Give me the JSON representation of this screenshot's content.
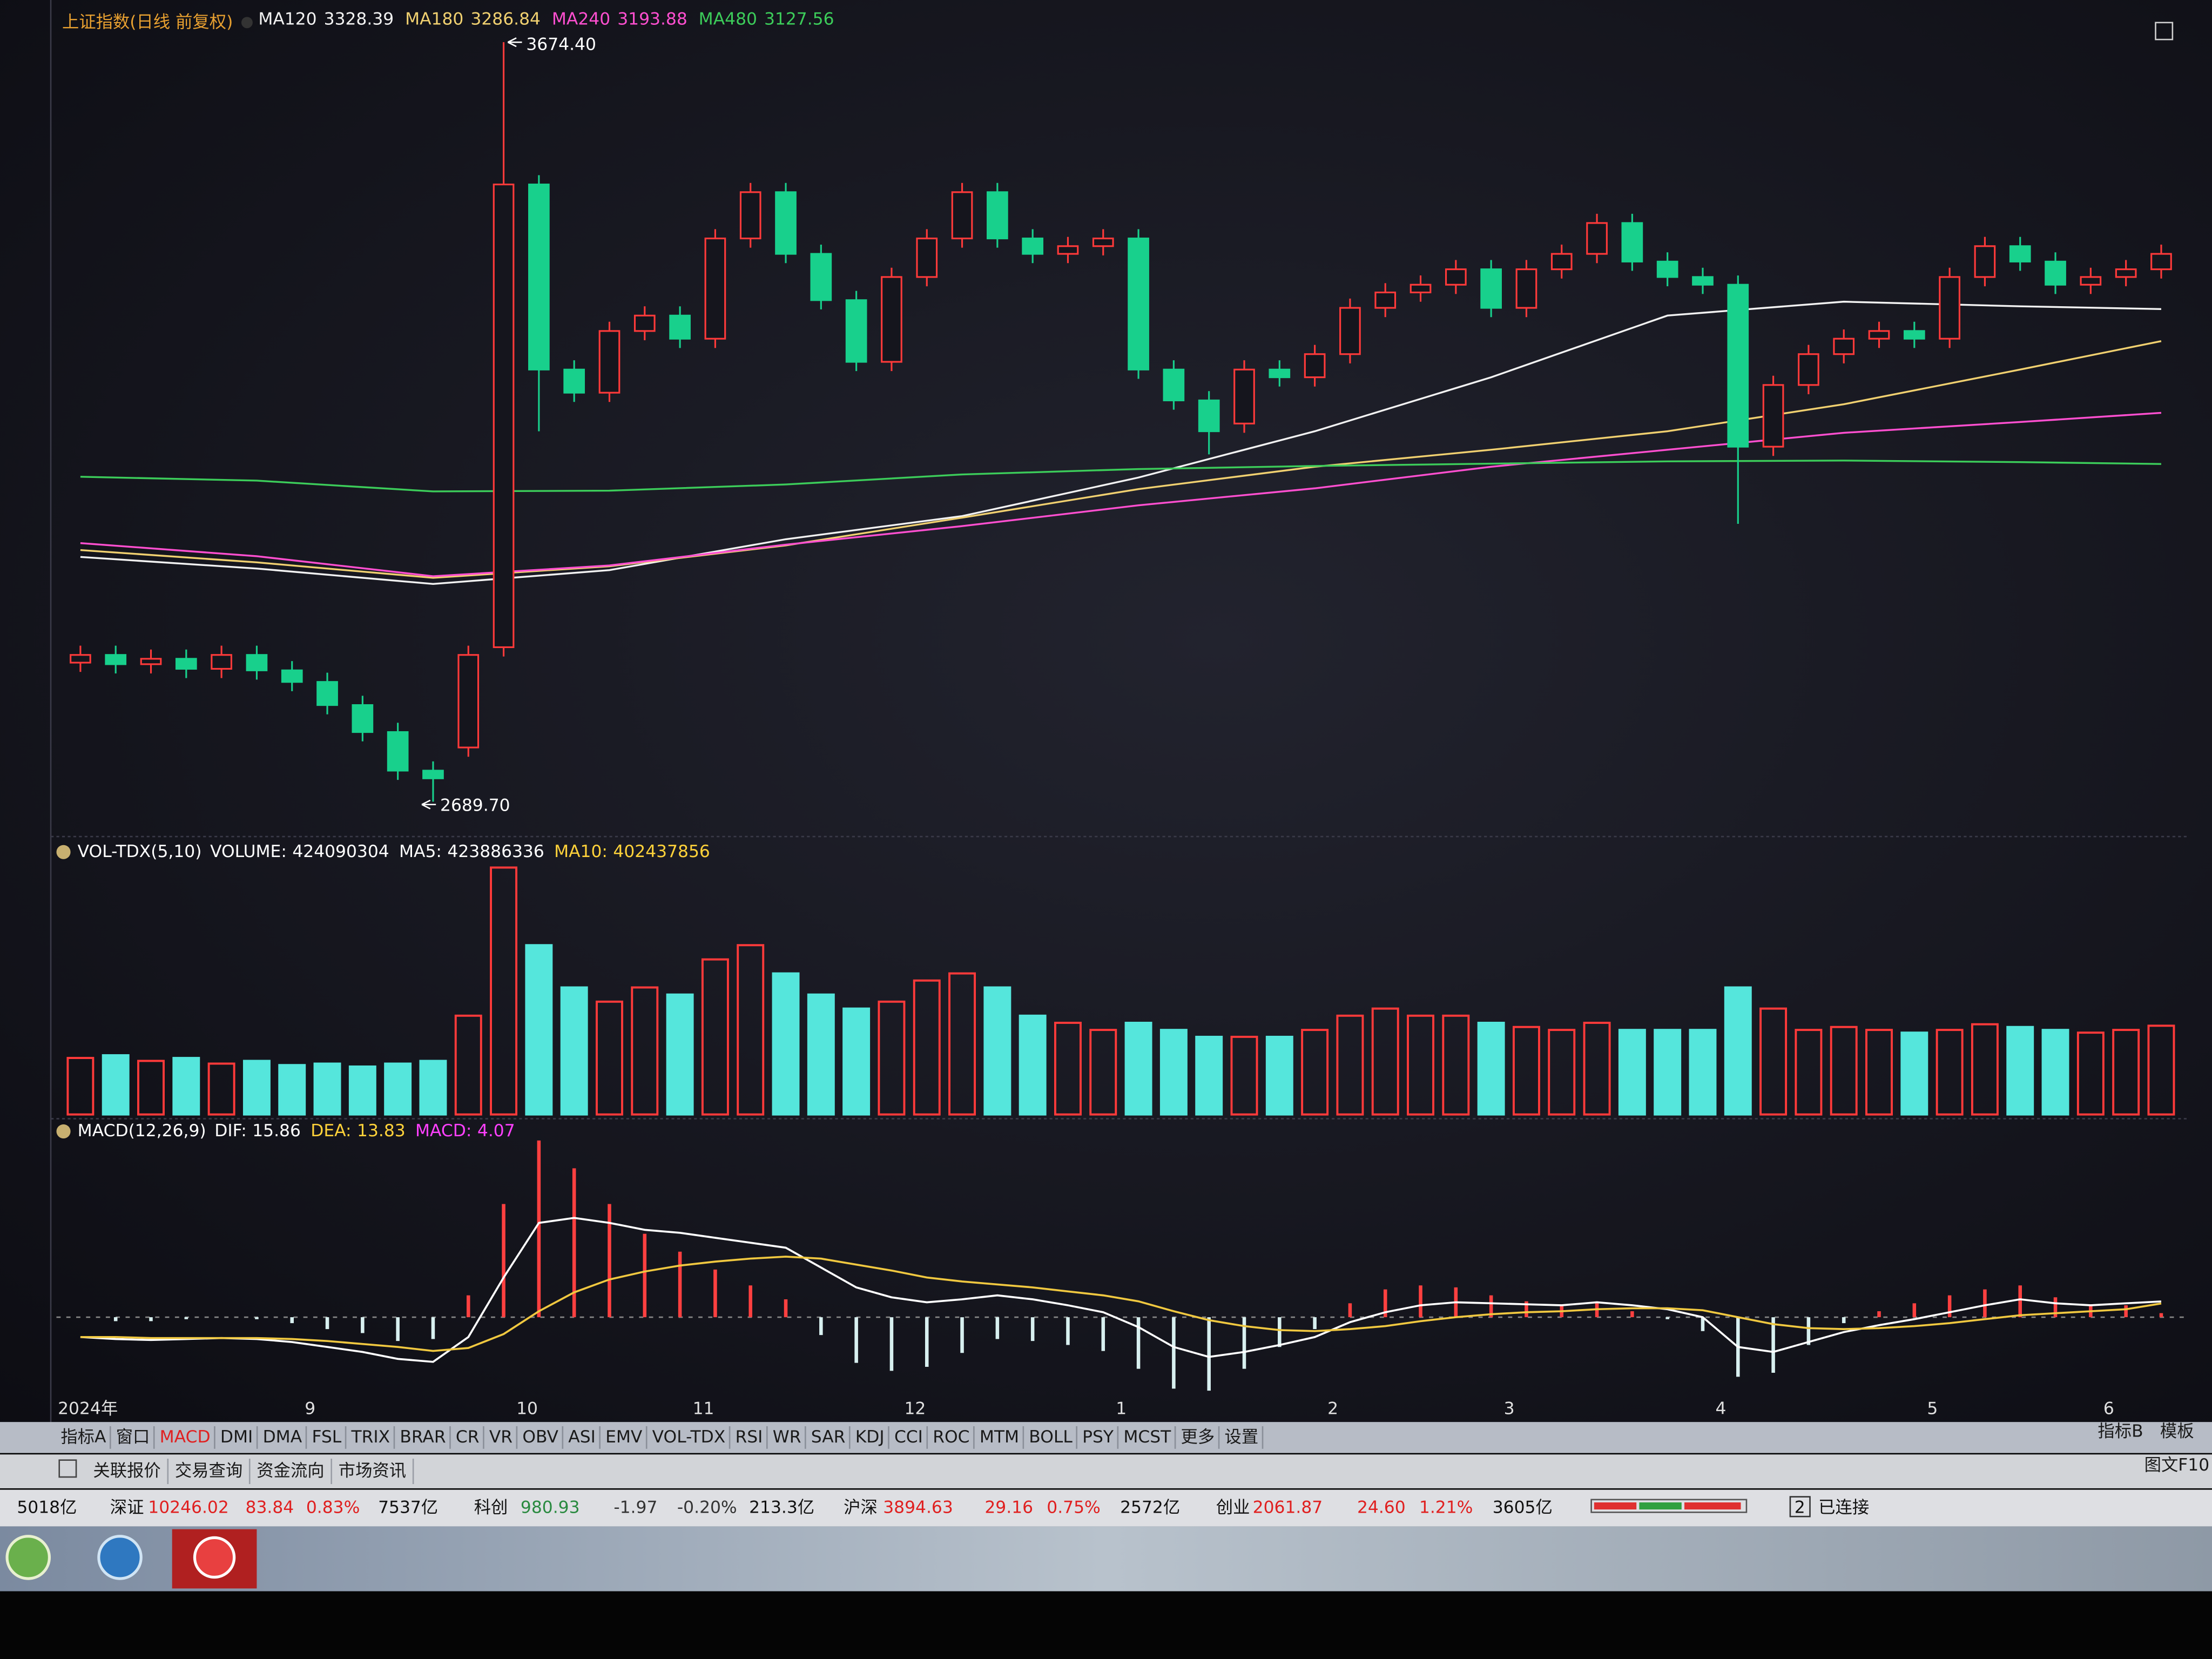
{
  "chart_data": {
    "type": "candlestick",
    "title": "上证指数(日线 前复权)",
    "categories": [
      "2024年",
      null,
      null,
      null,
      null,
      null,
      null,
      "9",
      null,
      null,
      null,
      null,
      null,
      "10",
      null,
      null,
      null,
      null,
      "11",
      null,
      null,
      null,
      null,
      null,
      "12",
      null,
      null,
      null,
      null,
      null,
      "1",
      null,
      null,
      null,
      null,
      null,
      "2",
      null,
      null,
      null,
      null,
      "3",
      null,
      null,
      null,
      null,
      null,
      "4",
      null,
      null,
      null,
      null,
      null,
      "5",
      null,
      null,
      null,
      null,
      "6",
      null
    ],
    "open": [
      2870,
      2880,
      2868,
      2875,
      2862,
      2880,
      2860,
      2845,
      2815,
      2780,
      2730,
      2760,
      2890,
      3490,
      3250,
      3220,
      3300,
      3320,
      3290,
      3420,
      3480,
      3400,
      3340,
      3260,
      3370,
      3420,
      3480,
      3420,
      3400,
      3410,
      3420,
      3250,
      3210,
      3180,
      3250,
      3240,
      3270,
      3330,
      3350,
      3360,
      3380,
      3330,
      3380,
      3400,
      3440,
      3390,
      3370,
      3360,
      3150,
      3230,
      3270,
      3290,
      3300,
      3290,
      3370,
      3410,
      3390,
      3360,
      3370,
      3380
    ],
    "high": [
      2892,
      2892,
      2887,
      2887,
      2892,
      2892,
      2872,
      2857,
      2827,
      2792,
      2742,
      2892,
      3674.4,
      3502,
      3262,
      3312,
      3332,
      3332,
      3432,
      3492,
      3492,
      3412,
      3352,
      3382,
      3432,
      3492,
      3492,
      3432,
      3422,
      3432,
      3432,
      3262,
      3222,
      3262,
      3262,
      3282,
      3342,
      3362,
      3372,
      3392,
      3392,
      3392,
      3412,
      3452,
      3452,
      3402,
      3382,
      3372,
      3242,
      3282,
      3302,
      3312,
      3312,
      3382,
      3422,
      3422,
      3402,
      3382,
      3392,
      3412
    ],
    "low": [
      2858,
      2856,
      2856,
      2850,
      2850,
      2848,
      2833,
      2803,
      2768,
      2718,
      2689.7,
      2748,
      2878,
      3170,
      3208,
      3208,
      3288,
      3278,
      3278,
      3408,
      3388,
      3328,
      3248,
      3248,
      3358,
      3408,
      3408,
      3388,
      3388,
      3398,
      3238,
      3198,
      3140,
      3168,
      3228,
      3228,
      3258,
      3318,
      3338,
      3348,
      3318,
      3318,
      3368,
      3388,
      3378,
      3358,
      3348,
      3050,
      3138,
      3218,
      3258,
      3278,
      3278,
      3278,
      3358,
      3378,
      3348,
      3348,
      3358,
      3368
    ],
    "close": [
      2880,
      2868,
      2875,
      2862,
      2880,
      2860,
      2845,
      2815,
      2780,
      2730,
      2720,
      2880,
      3490,
      3250,
      3220,
      3300,
      3320,
      3290,
      3420,
      3480,
      3400,
      3340,
      3260,
      3370,
      3420,
      3480,
      3420,
      3400,
      3410,
      3420,
      3250,
      3210,
      3170,
      3250,
      3240,
      3270,
      3330,
      3350,
      3360,
      3380,
      3330,
      3380,
      3400,
      3440,
      3390,
      3370,
      3360,
      3150,
      3230,
      3270,
      3290,
      3300,
      3290,
      3370,
      3410,
      3390,
      3360,
      3370,
      3380,
      3400
    ],
    "up_color": "#ff3a3a",
    "down_color": "#18d08c",
    "ylim": [
      2650,
      3720
    ],
    "high_label": {
      "value": 3674.4,
      "label": "3674.40"
    },
    "low_label": {
      "value": 2689.7,
      "label": "2689.70"
    },
    "ma": {
      "x": [
        0,
        5,
        10,
        15,
        20,
        25,
        30,
        35,
        40,
        45,
        50,
        55,
        59
      ],
      "series": [
        {
          "name": "MA120",
          "color": "#f2f2f2",
          "legend_value": 3328.39,
          "values": [
            3007,
            2992,
            2972,
            2990,
            3030,
            3060,
            3110,
            3170,
            3240,
            3320,
            3338,
            3332,
            3328.39
          ]
        },
        {
          "name": "MA180",
          "color": "#f0d070",
          "legend_value": 3286.84,
          "values": [
            3016,
            3000,
            2980,
            2995,
            3022,
            3058,
            3095,
            3124,
            3146,
            3170,
            3205,
            3250,
            3286.84
          ]
        },
        {
          "name": "MA240",
          "color": "#ff4fd0",
          "legend_value": 3193.88,
          "values": [
            3025,
            3008,
            2982,
            2996,
            3023,
            3047,
            3074,
            3096,
            3124,
            3146,
            3168,
            3182,
            3193.88
          ]
        },
        {
          "name": "MA480",
          "color": "#3ccc5a",
          "legend_value": 3127.56,
          "values": [
            3111,
            3106,
            3092,
            3093,
            3101,
            3114,
            3121,
            3125,
            3128,
            3131,
            3132,
            3130,
            3127.56
          ]
        }
      ]
    },
    "volume": {
      "title": "VOL-TDX(5,10)",
      "stats": [
        {
          "name": "VOLUME:",
          "value": 424090304,
          "color": "#ffffff"
        },
        {
          "name": "MA5:",
          "value": 423886336,
          "color": "#ffffff"
        },
        {
          "name": "MA10:",
          "value": 402437856,
          "color": "#ffd23a"
        }
      ],
      "values": [
        270000000,
        283000000,
        256000000,
        270000000,
        243000000,
        256000000,
        236000000,
        243000000,
        229000000,
        243000000,
        256000000,
        472000000,
        1180000000,
        809000000,
        607000000,
        539000000,
        607000000,
        573000000,
        741000000,
        809000000,
        674000000,
        573000000,
        506000000,
        539000000,
        640000000,
        674000000,
        607000000,
        472000000,
        438000000,
        404000000,
        438000000,
        404000000,
        371000000,
        371000000,
        371000000,
        404000000,
        472000000,
        506000000,
        472000000,
        472000000,
        438000000,
        418000000,
        404000000,
        438000000,
        404000000,
        404000000,
        404000000,
        607000000,
        506000000,
        404000000,
        418000000,
        404000000,
        391000000,
        404000000,
        431000000,
        418000000,
        404000000,
        391000000,
        404000000,
        424090304
      ],
      "ylim": [
        0,
        1200000000
      ],
      "up_color": "#ff3a3a",
      "down_color": "#55e6dc"
    },
    "macd": {
      "title": "MACD(12,26,9)",
      "stats": [
        {
          "name": "DIF:",
          "value": 15.86,
          "color": "#ffffff"
        },
        {
          "name": "DEA:",
          "value": 13.83,
          "color": "#ffd23a"
        },
        {
          "name": "MACD:",
          "value": 4.07,
          "color": "#ff40ff"
        }
      ],
      "dif": [
        -20,
        -22,
        -23,
        -22,
        -21,
        -22,
        -25,
        -30,
        -35,
        -42,
        -45,
        -20,
        40,
        95,
        100,
        95,
        88,
        85,
        80,
        75,
        70,
        50,
        30,
        20,
        15,
        18,
        22,
        18,
        12,
        5,
        -10,
        -30,
        -40,
        -35,
        -28,
        -20,
        -5,
        5,
        12,
        15,
        14,
        13,
        12,
        15,
        12,
        8,
        0,
        -30,
        -35,
        -25,
        -15,
        -8,
        -2,
        5,
        12,
        18,
        14,
        12,
        14,
        15.86
      ],
      "dea": [
        -20,
        -20,
        -21,
        -21,
        -21,
        -21,
        -22,
        -24,
        -27,
        -30,
        -34,
        -31,
        -17,
        6,
        25,
        38,
        46,
        52,
        56,
        59,
        61,
        59,
        53,
        47,
        40,
        36,
        33,
        30,
        26,
        22,
        16,
        6,
        -3,
        -9,
        -13,
        -14,
        -12,
        -9,
        -4,
        0,
        3,
        5,
        6,
        8,
        9,
        9,
        7,
        0,
        -7,
        -11,
        -12,
        -11,
        -9,
        -6,
        -2,
        2,
        4,
        6,
        8,
        13.83
      ],
      "bars": [
        0,
        -4,
        -4,
        -2,
        0,
        -2,
        -6,
        -12,
        -16,
        -24,
        -22,
        22,
        114,
        178,
        150,
        114,
        84,
        66,
        48,
        32,
        18,
        -18,
        -46,
        -54,
        -50,
        -36,
        -22,
        -24,
        -28,
        -34,
        -52,
        -72,
        -74,
        -52,
        -30,
        -12,
        14,
        28,
        32,
        30,
        22,
        16,
        12,
        14,
        6,
        -2,
        -14,
        -60,
        -56,
        -28,
        -6,
        6,
        14,
        22,
        28,
        32,
        20,
        12,
        12,
        4.07
      ],
      "ylim": [
        -80,
        190
      ],
      "dif_color": "#ffffff",
      "dea_color": "#f0c840",
      "pos_color": "#ff4040",
      "neg_color": "#d8f0f0"
    }
  },
  "toolbar": {
    "tabs": [
      "指标A",
      "窗口",
      "MACD",
      "DMI",
      "DMA",
      "FSL",
      "TRIX",
      "BRAR",
      "CR",
      "VR",
      "OBV",
      "ASI",
      "EMV",
      "VOL-TDX",
      "RSI",
      "WR",
      "SAR",
      "KDJ",
      "CCI",
      "ROC",
      "MTM",
      "BOLL",
      "PSY",
      "MCST",
      "更多",
      "设置"
    ],
    "active": "MACD",
    "right_tabs": [
      "指标B",
      "模板"
    ]
  },
  "subbar": {
    "tabs": [
      "关联报价",
      "交易查询",
      "资金流向",
      "市场资讯"
    ],
    "right": "图文F10"
  },
  "status_bar": {
    "items": [
      {
        "text": "5018亿",
        "color": "#111111"
      },
      {
        "text": "深证",
        "color": "#111111"
      },
      {
        "text": "10246.02",
        "color": "#e02020"
      },
      {
        "text": "83.84",
        "color": "#e02020"
      },
      {
        "text": "0.83%",
        "color": "#e02020"
      },
      {
        "text": "7537亿",
        "color": "#111111"
      },
      {
        "text": "科创",
        "color": "#111111"
      },
      {
        "text": "980.93",
        "color": "#2a8a40"
      },
      {
        "text": "-1.97",
        "color": "#333333"
      },
      {
        "text": "-0.20%",
        "color": "#333333"
      },
      {
        "text": "213.3亿",
        "color": "#111111"
      },
      {
        "text": "沪深",
        "color": "#111111"
      },
      {
        "text": "3894.63",
        "color": "#e02020"
      },
      {
        "text": "29.16",
        "color": "#e02020"
      },
      {
        "text": "0.75%",
        "color": "#e02020"
      },
      {
        "text": "2572亿",
        "color": "#111111"
      },
      {
        "text": "创业",
        "color": "#111111"
      },
      {
        "text": "2061.87",
        "color": "#e02020"
      },
      {
        "text": "24.60",
        "color": "#e02020"
      },
      {
        "text": "1.21%",
        "color": "#e02020"
      },
      {
        "text": "3605亿",
        "color": "#111111"
      },
      {
        "text": "2",
        "color": "#111111"
      },
      {
        "text": "已连接",
        "color": "#111111"
      }
    ]
  }
}
